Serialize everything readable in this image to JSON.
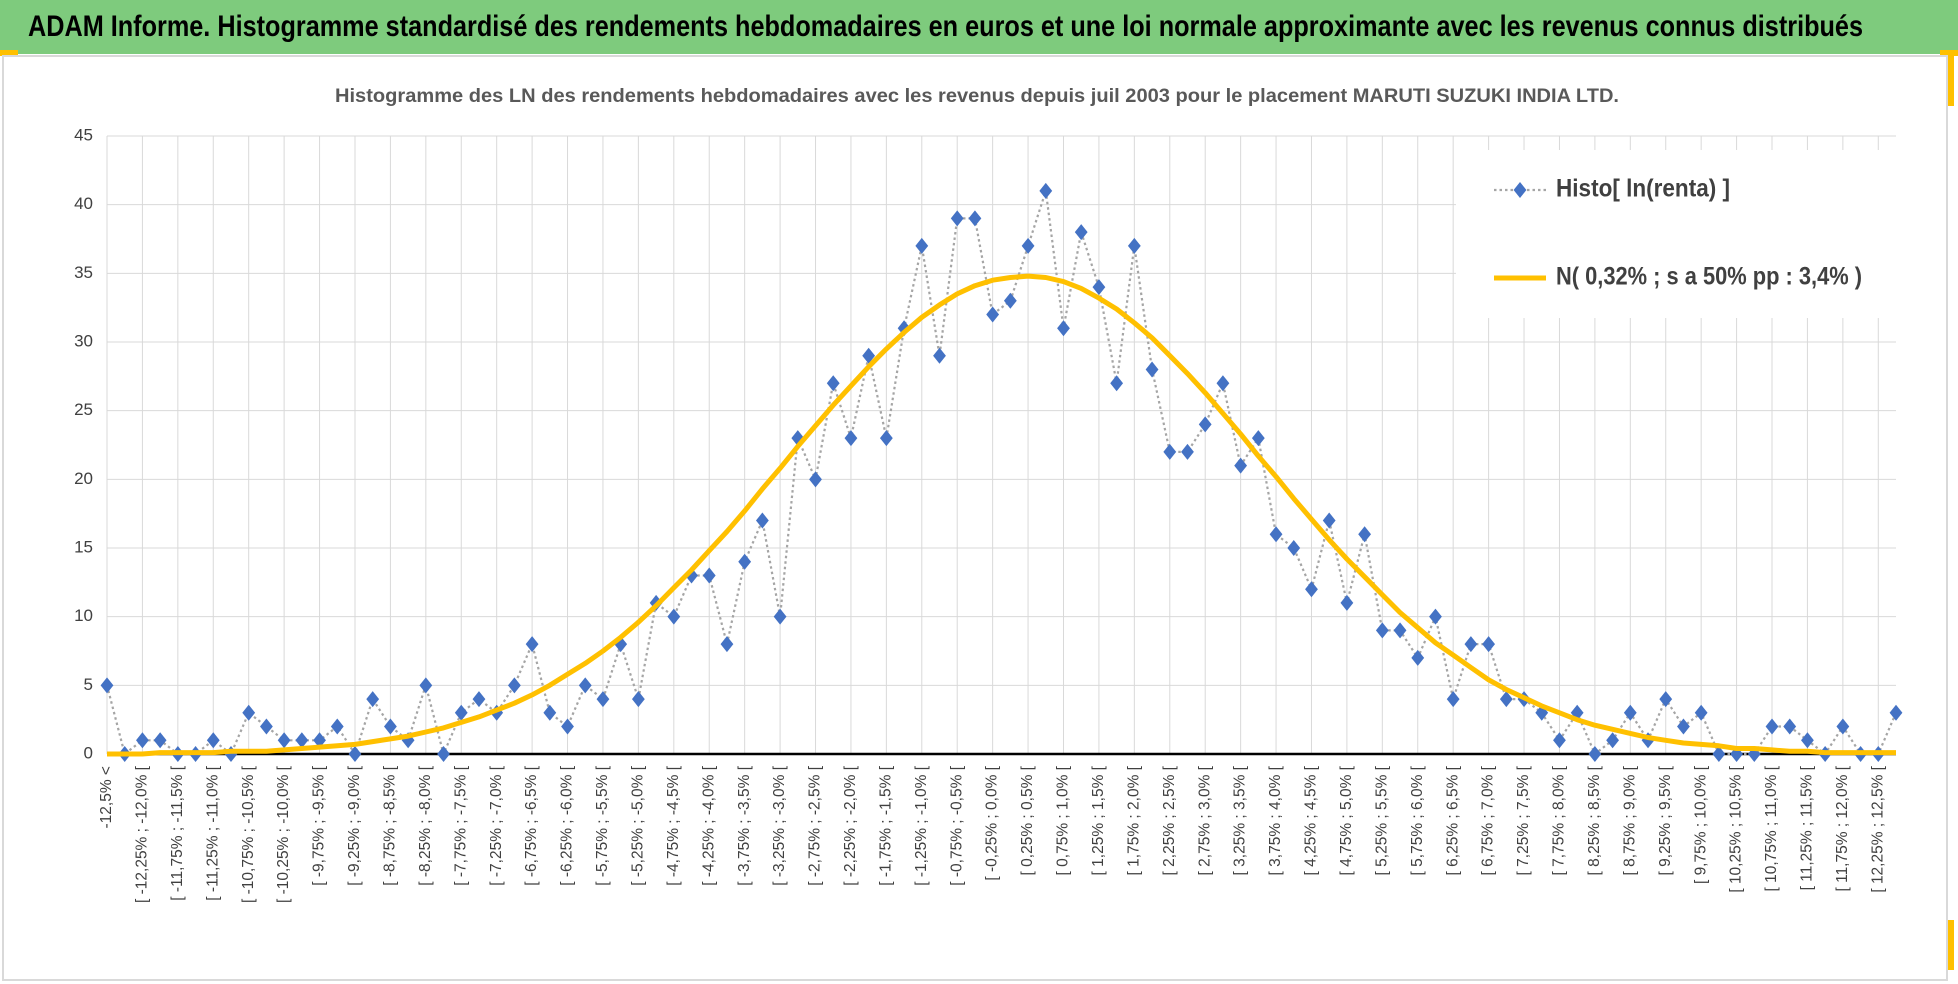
{
  "header": {
    "title": "ADAM Informe. Histogramme standardisé des rendements hebdomadaires en euros et une loi normale approximante avec les revenus connus distribués"
  },
  "chart_data": {
    "type": "line",
    "title": "Histogramme  des LN des rendements hebdomadaires avec les revenus depuis juil 2003 pour le placement MARUTI SUZUKI INDIA LTD.",
    "categories": [
      "-12,5% <",
      null,
      "[ -12,25% ; -12,0% [",
      null,
      "[ -11,75% ; -11,5% [",
      null,
      "[ -11,25% ; -11,0% [",
      null,
      "[ -10,75% ; -10,5% [",
      null,
      "[ -10,25% ; -10,0% [",
      null,
      "[ -9,75% ; -9,5% [",
      null,
      "[ -9,25% ; -9,0% [",
      null,
      "[ -8,75% ; -8,5% [",
      null,
      "[ -8,25% ; -8,0% [",
      null,
      "[ -7,75% ; -7,5% [",
      null,
      "[ -7,25% ; -7,0% [",
      null,
      "[ -6,75% ; -6,5% [",
      null,
      "[ -6,25% ; -6,0% [",
      null,
      "[ -5,75% ; -5,5% [",
      null,
      "[ -5,25% ; -5,0% [",
      null,
      "[ -4,75% ; -4,5% [",
      null,
      "[ -4,25% ; -4,0% [",
      null,
      "[ -3,75% ; -3,5% [",
      null,
      "[ -3,25% ; -3,0% [",
      null,
      "[ -2,75% ; -2,5% [",
      null,
      "[ -2,25% ; -2,0% [",
      null,
      "[ -1,75% ; -1,5% [",
      null,
      "[ -1,25% ; -1,0% [",
      null,
      "[ -0,75% ; -0,5% [",
      null,
      "[ -0,25% ; 0,0% [",
      null,
      "[ 0,25% ; 0,5% [",
      null,
      "[ 0,75% ; 1,0% [",
      null,
      "[ 1,25% ; 1,5% [",
      null,
      "[ 1,75% ; 2,0% [",
      null,
      "[ 2,25% ; 2,5% [",
      null,
      "[ 2,75% ; 3,0% [",
      null,
      "[ 3,25% ; 3,5% [",
      null,
      "[ 3,75% ; 4,0% [",
      null,
      "[ 4,25% ; 4,5% [",
      null,
      "[ 4,75% ; 5,0% [",
      null,
      "[ 5,25% ; 5,5% [",
      null,
      "[ 5,75% ; 6,0% [",
      null,
      "[ 6,25% ; 6,5% [",
      null,
      "[ 6,75% ; 7,0% [",
      null,
      "[ 7,25% ; 7,5% [",
      null,
      "[ 7,75% ; 8,0% [",
      null,
      "[ 8,25% ; 8,5% [",
      null,
      "[ 8,75% ; 9,0% [",
      null,
      "[ 9,25% ; 9,5% [",
      null,
      "[ 9,75% ; 10,0% [",
      null,
      "[ 10,25% ; 10,5% [",
      null,
      "[ 10,75% ; 11,0% [",
      null,
      "[ 11,25% ; 11,5% [",
      null,
      "[ 11,75% ; 12,0% [",
      null,
      "[ 12,25% ; 12,5% [",
      null
    ],
    "series": [
      {
        "name": "Histo[ ln(renta) ]",
        "color": "#4472c4",
        "line_color": "#a5a5a5",
        "line_style": "dotted",
        "marker": "diamond",
        "values": [
          5,
          0,
          1,
          1,
          0,
          0,
          1,
          0,
          3,
          2,
          1,
          1,
          1,
          2,
          0,
          4,
          2,
          1,
          5,
          0,
          3,
          4,
          3,
          5,
          8,
          3,
          2,
          5,
          4,
          8,
          4,
          11,
          10,
          13,
          13,
          8,
          14,
          17,
          10,
          23,
          20,
          27,
          23,
          29,
          23,
          31,
          37,
          29,
          39,
          39,
          32,
          33,
          37,
          41,
          31,
          38,
          34,
          27,
          37,
          28,
          22,
          22,
          24,
          27,
          21,
          23,
          16,
          15,
          12,
          17,
          11,
          16,
          9,
          9,
          7,
          10,
          4,
          8,
          8,
          4,
          4,
          3,
          1,
          3,
          0,
          1,
          3,
          1,
          4,
          2,
          3,
          0,
          0,
          0,
          2,
          2,
          1,
          0,
          2,
          0,
          0,
          3
        ]
      },
      {
        "name": "N( 0,32% ; s a 50% pp : 3,4% )",
        "color": "#ffc000",
        "line_style": "solid",
        "marker": "none",
        "values": [
          0.0,
          0.0,
          0.0,
          0.1,
          0.1,
          0.1,
          0.1,
          0.2,
          0.2,
          0.2,
          0.3,
          0.4,
          0.5,
          0.6,
          0.7,
          0.9,
          1.1,
          1.3,
          1.6,
          1.9,
          2.3,
          2.7,
          3.2,
          3.7,
          4.3,
          5.0,
          5.8,
          6.6,
          7.5,
          8.5,
          9.6,
          10.8,
          12.1,
          13.4,
          14.8,
          16.2,
          17.7,
          19.3,
          20.8,
          22.4,
          23.9,
          25.4,
          26.8,
          28.2,
          29.5,
          30.7,
          31.8,
          32.7,
          33.5,
          34.1,
          34.5,
          34.7,
          34.8,
          34.7,
          34.4,
          33.9,
          33.2,
          32.4,
          31.4,
          30.3,
          29.0,
          27.7,
          26.3,
          24.8,
          23.3,
          21.7,
          20.2,
          18.6,
          17.1,
          15.6,
          14.2,
          12.9,
          11.6,
          10.3,
          9.2,
          8.1,
          7.2,
          6.3,
          5.4,
          4.7,
          4.1,
          3.5,
          3.0,
          2.5,
          2.1,
          1.8,
          1.5,
          1.2,
          1.0,
          0.8,
          0.7,
          0.6,
          0.4,
          0.4,
          0.3,
          0.2,
          0.2,
          0.1,
          0.1,
          0.1,
          0.1,
          0.1
        ]
      }
    ],
    "ylim": [
      0,
      45
    ],
    "yticks": [
      0,
      5,
      10,
      15,
      20,
      25,
      30,
      35,
      40,
      45
    ],
    "grid": true,
    "legend": "upper right"
  }
}
